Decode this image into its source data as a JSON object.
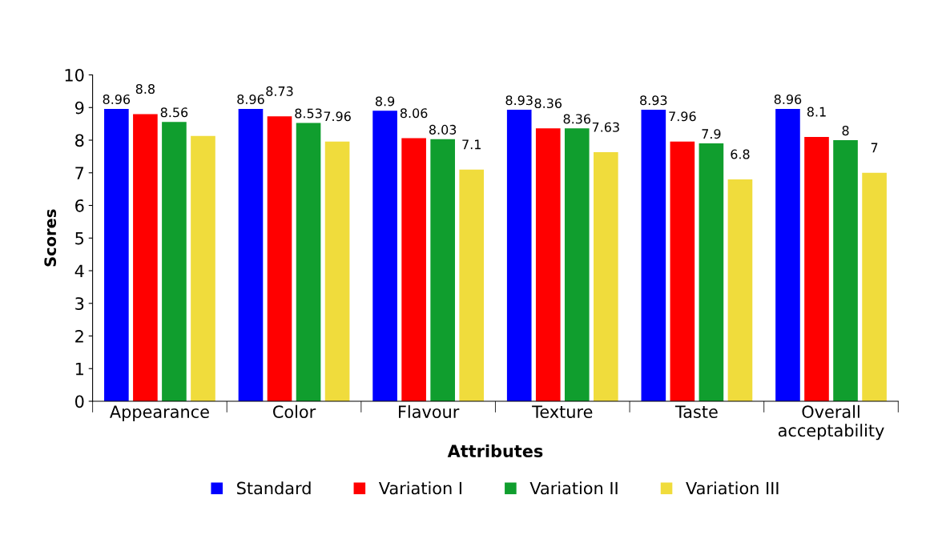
{
  "chart_data": {
    "type": "bar",
    "xlabel": "Attributes",
    "ylabel": "Scores",
    "categories": [
      "Appearance",
      "Color",
      "Flavour",
      "Texture",
      "Taste",
      "Overall\nacceptability"
    ],
    "series": [
      {
        "name": "Standard",
        "color": "#0000ff",
        "values": [
          8.96,
          8.96,
          8.9,
          8.93,
          8.93,
          8.96
        ],
        "value_labels": [
          "8.96",
          "8.96",
          "8.9",
          "8.93",
          "8.93",
          "8.96"
        ]
      },
      {
        "name": "Variation I",
        "color": "#ff0000",
        "values": [
          8.8,
          8.73,
          8.06,
          8.36,
          7.96,
          8.1
        ],
        "value_labels": [
          "8.8",
          "8.73",
          "8.06",
          "8.36",
          "7.96",
          "8.1"
        ]
      },
      {
        "name": "Variation II",
        "color": "#109e2e",
        "values": [
          8.56,
          8.53,
          8.03,
          8.36,
          7.9,
          8
        ],
        "value_labels": [
          "8.56",
          "8.53",
          "8.03",
          "8.36",
          "7.9",
          "8"
        ]
      },
      {
        "name": "Variation III",
        "color": "#f0dc3c",
        "values": [
          8.13,
          7.96,
          7.1,
          7.63,
          6.8,
          7
        ],
        "value_labels": [
          null,
          "7.96",
          "7.1",
          "7.63",
          "6.8",
          "7"
        ]
      }
    ],
    "ylim": [
      0,
      10
    ],
    "yticks": [
      0,
      1,
      2,
      3,
      4,
      5,
      6,
      7,
      8,
      9,
      10
    ],
    "grid": false,
    "legend": "bottom"
  }
}
